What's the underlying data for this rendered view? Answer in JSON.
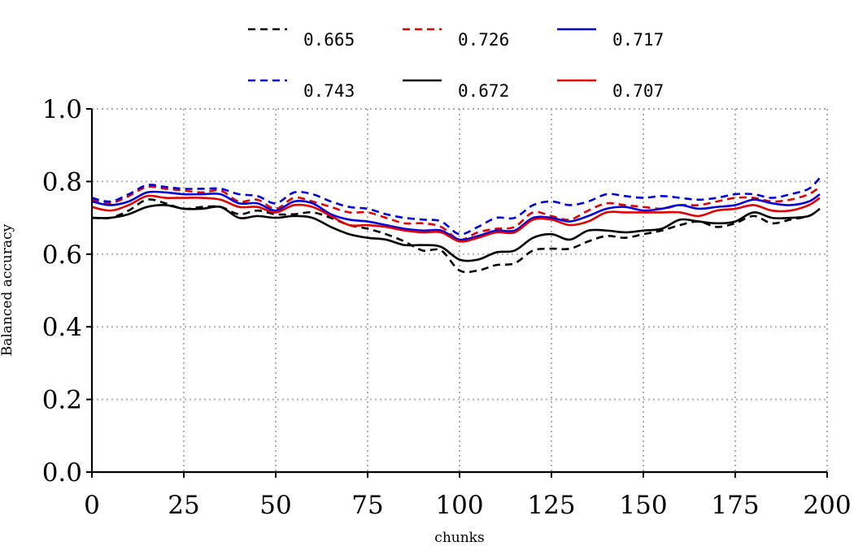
{
  "chart_data": {
    "type": "line",
    "title": "",
    "xlabel": "chunks",
    "ylabel": "Balanced accuracy",
    "xlim": [
      0,
      200
    ],
    "ylim": [
      0,
      1
    ],
    "xticks": [
      0,
      25,
      50,
      75,
      100,
      125,
      150,
      175,
      200
    ],
    "yticks": [
      0.0,
      0.2,
      0.4,
      0.6,
      0.8,
      1.0
    ],
    "xtick_labels": [
      "0",
      "25",
      "50",
      "75",
      "100",
      "125",
      "150",
      "175",
      "200"
    ],
    "ytick_labels": [
      "0.0",
      "0.2",
      "0.4",
      "0.6",
      "0.8",
      "1.0"
    ],
    "grid": true,
    "legend_position": "top-center",
    "legend_columns": 3,
    "x": [
      0,
      5,
      10,
      15,
      20,
      25,
      30,
      35,
      40,
      45,
      50,
      55,
      60,
      65,
      70,
      75,
      80,
      85,
      90,
      95,
      100,
      105,
      110,
      115,
      120,
      125,
      130,
      135,
      140,
      145,
      150,
      155,
      160,
      165,
      170,
      175,
      180,
      185,
      190,
      195,
      198
    ],
    "series": [
      {
        "name": "0.665",
        "color": "#000000",
        "dash": "dashed",
        "values": [
          0.7,
          0.7,
          0.72,
          0.75,
          0.74,
          0.725,
          0.73,
          0.73,
          0.71,
          0.72,
          0.71,
          0.71,
          0.715,
          0.7,
          0.68,
          0.67,
          0.655,
          0.635,
          0.61,
          0.61,
          0.555,
          0.555,
          0.57,
          0.575,
          0.61,
          0.615,
          0.615,
          0.635,
          0.65,
          0.645,
          0.655,
          0.665,
          0.68,
          0.69,
          0.675,
          0.685,
          0.705,
          0.685,
          0.695,
          0.705,
          0.725
        ]
      },
      {
        "name": "0.726",
        "color": "#e00000",
        "dash": "dashed",
        "values": [
          0.75,
          0.74,
          0.76,
          0.785,
          0.78,
          0.775,
          0.77,
          0.775,
          0.745,
          0.75,
          0.725,
          0.755,
          0.745,
          0.73,
          0.715,
          0.715,
          0.7,
          0.685,
          0.685,
          0.675,
          0.64,
          0.66,
          0.67,
          0.675,
          0.715,
          0.705,
          0.695,
          0.72,
          0.74,
          0.735,
          0.73,
          0.725,
          0.735,
          0.735,
          0.745,
          0.755,
          0.755,
          0.745,
          0.75,
          0.765,
          0.785
        ]
      },
      {
        "name": "0.717",
        "color": "#0000dd",
        "dash": "solid",
        "values": [
          0.745,
          0.735,
          0.745,
          0.77,
          0.77,
          0.765,
          0.765,
          0.765,
          0.74,
          0.74,
          0.72,
          0.745,
          0.74,
          0.71,
          0.695,
          0.69,
          0.68,
          0.67,
          0.665,
          0.665,
          0.64,
          0.65,
          0.665,
          0.665,
          0.7,
          0.7,
          0.69,
          0.705,
          0.725,
          0.73,
          0.72,
          0.725,
          0.735,
          0.725,
          0.73,
          0.735,
          0.75,
          0.74,
          0.735,
          0.745,
          0.765
        ]
      },
      {
        "name": "0.743",
        "color": "#0000dd",
        "dash": "dashed",
        "values": [
          0.755,
          0.745,
          0.765,
          0.79,
          0.785,
          0.78,
          0.78,
          0.78,
          0.765,
          0.76,
          0.74,
          0.77,
          0.765,
          0.745,
          0.73,
          0.725,
          0.71,
          0.7,
          0.695,
          0.69,
          0.655,
          0.675,
          0.7,
          0.7,
          0.735,
          0.745,
          0.735,
          0.745,
          0.765,
          0.76,
          0.755,
          0.76,
          0.755,
          0.75,
          0.755,
          0.765,
          0.765,
          0.755,
          0.765,
          0.78,
          0.81
        ]
      },
      {
        "name": "0.672",
        "color": "#000000",
        "dash": "solid",
        "values": [
          0.7,
          0.7,
          0.71,
          0.73,
          0.735,
          0.725,
          0.725,
          0.73,
          0.7,
          0.705,
          0.7,
          0.705,
          0.7,
          0.675,
          0.655,
          0.645,
          0.64,
          0.625,
          0.625,
          0.62,
          0.585,
          0.585,
          0.605,
          0.61,
          0.645,
          0.655,
          0.64,
          0.665,
          0.665,
          0.66,
          0.665,
          0.67,
          0.695,
          0.69,
          0.685,
          0.69,
          0.715,
          0.7,
          0.7,
          0.705,
          0.725
        ]
      },
      {
        "name": "0.707",
        "color": "#e00000",
        "dash": "solid",
        "values": [
          0.73,
          0.72,
          0.735,
          0.76,
          0.755,
          0.755,
          0.755,
          0.75,
          0.73,
          0.73,
          0.715,
          0.735,
          0.73,
          0.705,
          0.68,
          0.68,
          0.675,
          0.665,
          0.66,
          0.66,
          0.635,
          0.645,
          0.66,
          0.66,
          0.695,
          0.695,
          0.68,
          0.69,
          0.715,
          0.715,
          0.715,
          0.715,
          0.715,
          0.705,
          0.72,
          0.725,
          0.735,
          0.72,
          0.72,
          0.735,
          0.755
        ]
      }
    ]
  }
}
